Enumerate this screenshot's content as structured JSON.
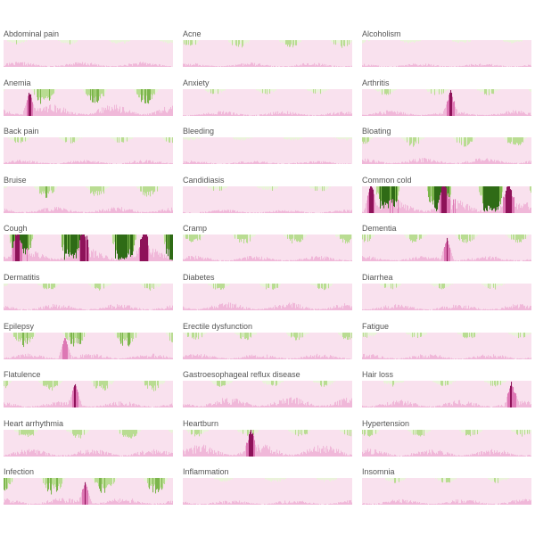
{
  "colors": {
    "pink_light": "#f9e1ee",
    "pink_mid": "#f0b8d9",
    "pink_strong": "#dd77b4",
    "magenta": "#8e1259",
    "green_light": "#eaf3da",
    "green_mid": "#b9dc92",
    "green_strong": "#7cb54c",
    "green_dark": "#2f6b16"
  },
  "chart_data": {
    "type": "area",
    "description_hint": "",
    "panels": [
      {
        "name": "Abdominal pain",
        "intensity": 1.0,
        "pink": 0.35,
        "green": 0.25,
        "spikes": []
      },
      {
        "name": "Acne",
        "intensity": 1.0,
        "pink": 0.3,
        "green": 0.45,
        "spikes": []
      },
      {
        "name": "Alcoholism",
        "intensity": 1.0,
        "pink": 0.25,
        "green": 0.2,
        "spikes": []
      },
      {
        "name": "Anemia",
        "intensity": 1.5,
        "pink": 0.8,
        "green": 0.6,
        "spikes": [
          0.15
        ]
      },
      {
        "name": "Anxiety",
        "intensity": 1.0,
        "pink": 0.35,
        "green": 0.3,
        "spikes": []
      },
      {
        "name": "Arthritis",
        "intensity": 1.2,
        "pink": 0.4,
        "green": 0.3,
        "spikes": [
          0.52
        ]
      },
      {
        "name": "Back pain",
        "intensity": 1.0,
        "pink": 0.3,
        "green": 0.35,
        "spikes": []
      },
      {
        "name": "Bleeding",
        "intensity": 1.0,
        "pink": 0.25,
        "green": 0.2,
        "spikes": []
      },
      {
        "name": "Bloating",
        "intensity": 1.1,
        "pink": 0.45,
        "green": 0.5,
        "spikes": []
      },
      {
        "name": "Bruise",
        "intensity": 1.1,
        "pink": 0.45,
        "green": 0.6,
        "spikes": []
      },
      {
        "name": "Candidiasis",
        "intensity": 1.0,
        "pink": 0.25,
        "green": 0.3,
        "spikes": []
      },
      {
        "name": "Common cold",
        "intensity": 3.0,
        "pink": 1.0,
        "green": 1.0,
        "spikes": [
          0.05,
          0.48,
          0.86
        ]
      },
      {
        "name": "Cough",
        "intensity": 3.0,
        "pink": 1.0,
        "green": 1.0,
        "spikes": [
          0.08,
          0.47,
          0.83
        ]
      },
      {
        "name": "Cramp",
        "intensity": 1.1,
        "pink": 0.4,
        "green": 0.5,
        "spikes": []
      },
      {
        "name": "Dementia",
        "intensity": 1.1,
        "pink": 0.4,
        "green": 0.45,
        "spikes": [
          0.5
        ]
      },
      {
        "name": "Dermatitis",
        "intensity": 1.0,
        "pink": 0.45,
        "green": 0.4,
        "spikes": []
      },
      {
        "name": "Diabetes",
        "intensity": 1.1,
        "pink": 0.55,
        "green": 0.35,
        "spikes": []
      },
      {
        "name": "Diarrhea",
        "intensity": 1.0,
        "pink": 0.45,
        "green": 0.35,
        "spikes": []
      },
      {
        "name": "Epilepsy",
        "intensity": 1.3,
        "pink": 0.4,
        "green": 0.65,
        "spikes": [
          0.36
        ]
      },
      {
        "name": "Erectile dysfunction",
        "intensity": 1.0,
        "pink": 0.4,
        "green": 0.45,
        "spikes": []
      },
      {
        "name": "Fatigue",
        "intensity": 1.0,
        "pink": 0.4,
        "green": 0.35,
        "spikes": []
      },
      {
        "name": "Flatulence",
        "intensity": 1.1,
        "pink": 0.45,
        "green": 0.55,
        "spikes": [
          0.42
        ]
      },
      {
        "name": "Gastroesophageal reflux disease",
        "intensity": 1.2,
        "pink": 0.75,
        "green": 0.3,
        "spikes": []
      },
      {
        "name": "Hair loss",
        "intensity": 1.1,
        "pink": 0.55,
        "green": 0.3,
        "spikes": [
          0.88
        ]
      },
      {
        "name": "Heart arrhythmia",
        "intensity": 1.1,
        "pink": 0.55,
        "green": 0.5,
        "spikes": []
      },
      {
        "name": "Heartburn",
        "intensity": 1.3,
        "pink": 0.85,
        "green": 0.3,
        "spikes": [
          0.4
        ]
      },
      {
        "name": "Hypertension",
        "intensity": 1.0,
        "pink": 0.55,
        "green": 0.4,
        "spikes": []
      },
      {
        "name": "Infection",
        "intensity": 1.6,
        "pink": 0.5,
        "green": 0.6,
        "spikes": [
          0.48
        ]
      },
      {
        "name": "Inflammation",
        "intensity": 1.0,
        "pink": 0.35,
        "green": 0.25,
        "spikes": []
      },
      {
        "name": "Insomnia",
        "intensity": 1.0,
        "pink": 0.4,
        "green": 0.3,
        "spikes": []
      }
    ]
  }
}
